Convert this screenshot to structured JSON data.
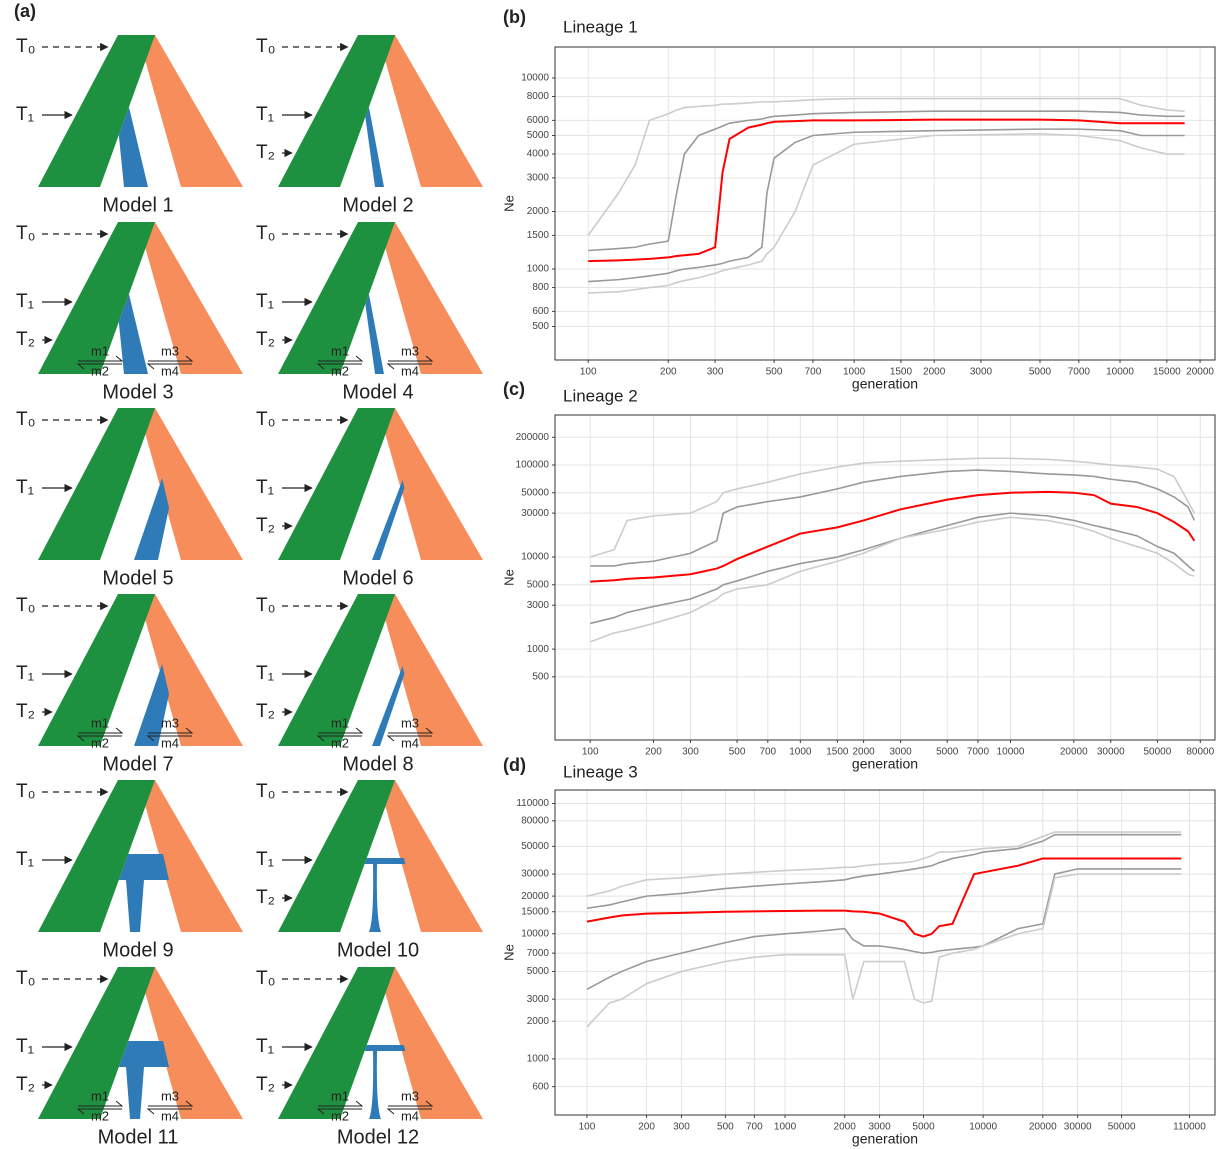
{
  "panel_labels": [
    "(a)",
    "(b)",
    "(c)",
    "(d)"
  ],
  "models": [
    {
      "label": "Model 1",
      "times": [
        "T₀",
        "T₁"
      ]
    },
    {
      "label": "Model 2",
      "times": [
        "T₀",
        "T₁",
        "T₂"
      ]
    },
    {
      "label": "Model 3",
      "times": [
        "T₀",
        "T₁",
        "T₂"
      ],
      "migration": [
        "m1",
        "m2",
        "m3",
        "m4"
      ]
    },
    {
      "label": "Model 4",
      "times": [
        "T₀",
        "T₁",
        "T₂"
      ],
      "migration": [
        "m1",
        "m2",
        "m3",
        "m4"
      ]
    },
    {
      "label": "Model 5",
      "times": [
        "T₀",
        "T₁"
      ]
    },
    {
      "label": "Model 6",
      "times": [
        "T₀",
        "T₁",
        "T₂"
      ]
    },
    {
      "label": "Model 7",
      "times": [
        "T₀",
        "T₁",
        "T₂"
      ],
      "migration": [
        "m1",
        "m2",
        "m3",
        "m4"
      ]
    },
    {
      "label": "Model 8",
      "times": [
        "T₀",
        "T₁",
        "T₂"
      ],
      "migration": [
        "m1",
        "m2",
        "m3",
        "m4"
      ]
    },
    {
      "label": "Model 9",
      "times": [
        "T₀",
        "T₁"
      ]
    },
    {
      "label": "Model 10",
      "times": [
        "T₀",
        "T₁",
        "T₂"
      ]
    },
    {
      "label": "Model 11",
      "times": [
        "T₀",
        "T₁",
        "T₂"
      ],
      "migration": [
        "m1",
        "m2",
        "m3",
        "m4"
      ]
    },
    {
      "label": "Model 12",
      "times": [
        "T₀",
        "T₁",
        "T₂"
      ],
      "migration": [
        "m1",
        "m2",
        "m3",
        "m4"
      ]
    }
  ],
  "chart_data": [
    {
      "type": "line",
      "title": "Lineage 1",
      "x_label": "generation",
      "y_label": "Ne",
      "log_x": true,
      "log_y": true,
      "grid": true,
      "xlim": [
        75,
        22760
      ],
      "ylim": [
        334,
        14530
      ],
      "xticks": [
        100,
        200,
        300,
        500,
        700,
        1000,
        1500,
        2000,
        3000,
        5000,
        7000,
        10000,
        15000,
        20000
      ],
      "yticks": [
        500,
        600,
        800,
        1000,
        1500,
        2000,
        3000,
        4000,
        5000,
        6000,
        8000,
        10000
      ],
      "x": [
        100,
        130,
        150,
        170,
        200,
        215,
        230,
        260,
        300,
        320,
        340,
        400,
        450,
        470,
        500,
        600,
        700,
        1000,
        2000,
        5000,
        7000,
        10000,
        12000,
        15000,
        17500
      ],
      "series": [
        {
          "color": "#cccccc",
          "values": [
            1500,
            2500,
            3500,
            6000,
            6500,
            6800,
            7000,
            7100,
            7200,
            7300,
            7300,
            7400,
            7500,
            7500,
            7500,
            7600,
            7700,
            7800,
            7800,
            7800,
            7800,
            7800,
            7200,
            6800,
            6700
          ]
        },
        {
          "color": "#999999",
          "values": [
            1250,
            1280,
            1300,
            1350,
            1400,
            2500,
            4000,
            5000,
            5400,
            5600,
            5800,
            6000,
            6100,
            6200,
            6300,
            6400,
            6500,
            6600,
            6700,
            6700,
            6700,
            6600,
            6400,
            6300,
            6300
          ]
        },
        {
          "color": "#ff0000",
          "values": [
            1100,
            1110,
            1120,
            1130,
            1150,
            1170,
            1180,
            1200,
            1300,
            3200,
            4800,
            5500,
            5700,
            5800,
            5900,
            5950,
            6000,
            6000,
            6050,
            6050,
            6000,
            5800,
            5800,
            5800,
            5800
          ]
        },
        {
          "color": "#999999",
          "values": [
            860,
            880,
            900,
            920,
            950,
            980,
            1000,
            1020,
            1050,
            1070,
            1100,
            1150,
            1300,
            2500,
            3800,
            4600,
            5000,
            5200,
            5300,
            5400,
            5400,
            5300,
            5000,
            5000,
            5000
          ]
        },
        {
          "color": "#cccccc",
          "values": [
            750,
            760,
            780,
            800,
            820,
            850,
            870,
            900,
            950,
            980,
            1000,
            1050,
            1100,
            1200,
            1300,
            2000,
            3500,
            4500,
            5000,
            5100,
            5000,
            4700,
            4300,
            4000,
            4000
          ]
        }
      ]
    },
    {
      "type": "line",
      "title": "Lineage 2",
      "x_label": "generation",
      "y_label": "Ne",
      "log_x": true,
      "log_y": true,
      "grid": true,
      "xlim": [
        68,
        94000
      ],
      "ylim": [
        103,
        349000
      ],
      "xticks": [
        100,
        200,
        300,
        500,
        700,
        1000,
        1500,
        2000,
        3000,
        5000,
        7000,
        10000,
        20000,
        30000,
        50000,
        80000
      ],
      "yticks": [
        500,
        1000,
        3000,
        5000,
        10000,
        30000,
        50000,
        100000,
        200000
      ],
      "x": [
        100,
        130,
        150,
        200,
        300,
        400,
        430,
        500,
        700,
        1000,
        1500,
        2000,
        3000,
        5000,
        7000,
        10000,
        15000,
        20000,
        25000,
        30000,
        40000,
        50000,
        60000,
        70000,
        75000
      ],
      "series": [
        {
          "color": "#cccccc",
          "values": [
            10000,
            12000,
            25000,
            28000,
            30000,
            40000,
            50000,
            55000,
            65000,
            80000,
            95000,
            105000,
            110000,
            115000,
            118000,
            118000,
            115000,
            110000,
            105000,
            100000,
            95000,
            90000,
            75000,
            40000,
            30000
          ]
        },
        {
          "color": "#999999",
          "values": [
            8000,
            8000,
            8500,
            9000,
            11000,
            15000,
            30000,
            35000,
            40000,
            45000,
            55000,
            65000,
            75000,
            85000,
            88000,
            85000,
            80000,
            78000,
            75000,
            70000,
            65000,
            55000,
            45000,
            35000,
            25000
          ]
        },
        {
          "color": "#ff0000",
          "values": [
            5400,
            5600,
            5800,
            6000,
            6500,
            7500,
            8000,
            9500,
            13000,
            18000,
            21000,
            25000,
            33000,
            42000,
            47000,
            50000,
            51000,
            50000,
            47000,
            38000,
            35000,
            30000,
            24000,
            19000,
            15000
          ]
        },
        {
          "color": "#999999",
          "values": [
            1900,
            2200,
            2500,
            2900,
            3500,
            4500,
            5000,
            5500,
            7000,
            8500,
            10000,
            12000,
            16000,
            22000,
            27000,
            30000,
            28000,
            25000,
            22000,
            20000,
            17000,
            13000,
            11000,
            8000,
            7000
          ]
        },
        {
          "color": "#cccccc",
          "values": [
            1200,
            1500,
            1600,
            1900,
            2500,
            3500,
            4000,
            4500,
            5000,
            7000,
            9000,
            11000,
            16000,
            20000,
            24000,
            27000,
            25000,
            22000,
            19000,
            16000,
            13000,
            11000,
            8500,
            6500,
            6200
          ]
        }
      ]
    },
    {
      "type": "line",
      "title": "Lineage 3",
      "x_label": "generation",
      "y_label": "Ne",
      "log_x": true,
      "log_y": true,
      "grid": true,
      "xlim": [
        69,
        148000
      ],
      "ylim": [
        356,
        141000
      ],
      "xticks": [
        100,
        200,
        300,
        500,
        700,
        1000,
        2000,
        3000,
        5000,
        10000,
        20000,
        30000,
        50000,
        110000
      ],
      "yticks": [
        600,
        1000,
        2000,
        3000,
        5000,
        7000,
        10000,
        15000,
        20000,
        30000,
        50000,
        80000,
        110000
      ],
      "x": [
        100,
        130,
        150,
        200,
        300,
        500,
        700,
        1000,
        1500,
        2000,
        2200,
        2500,
        3000,
        4000,
        4500,
        5000,
        5500,
        6000,
        7000,
        9000,
        10000,
        15000,
        20000,
        23000,
        30000,
        50000,
        100000
      ],
      "series": [
        {
          "color": "#cccccc",
          "values": [
            20000,
            22000,
            24000,
            27000,
            28000,
            30000,
            31000,
            32000,
            33000,
            34000,
            34000,
            35000,
            36000,
            37000,
            38000,
            40000,
            42000,
            45000,
            45000,
            47000,
            48000,
            50000,
            60000,
            65000,
            65000,
            65000,
            65000
          ]
        },
        {
          "color": "#999999",
          "values": [
            16000,
            17000,
            18000,
            20000,
            21000,
            23000,
            24000,
            25000,
            26000,
            27000,
            28000,
            29000,
            30000,
            32000,
            33000,
            34000,
            35000,
            37000,
            40000,
            43000,
            45000,
            48000,
            55000,
            62000,
            62000,
            62000,
            62000
          ]
        },
        {
          "color": "#ff0000",
          "values": [
            12500,
            13500,
            14000,
            14500,
            14700,
            15000,
            15100,
            15200,
            15300,
            15300,
            15100,
            15000,
            14500,
            12500,
            10000,
            9500,
            10000,
            11500,
            12000,
            30000,
            31000,
            35000,
            40000,
            40000,
            40000,
            40000,
            40000
          ]
        },
        {
          "color": "#999999",
          "values": [
            3600,
            4500,
            5000,
            6000,
            7000,
            8500,
            9500,
            10000,
            10500,
            11000,
            9000,
            8000,
            8000,
            7500,
            7200,
            7000,
            7100,
            7300,
            7500,
            7800,
            8000,
            11000,
            12000,
            30000,
            33000,
            33000,
            33000
          ]
        },
        {
          "color": "#cccccc",
          "values": [
            1800,
            2800,
            3000,
            4000,
            5000,
            6000,
            6500,
            6800,
            6800,
            6800,
            3000,
            6000,
            6000,
            6000,
            3000,
            2800,
            2900,
            6500,
            7000,
            7500,
            8000,
            10000,
            11000,
            28000,
            30000,
            30000,
            30000
          ]
        }
      ]
    }
  ]
}
